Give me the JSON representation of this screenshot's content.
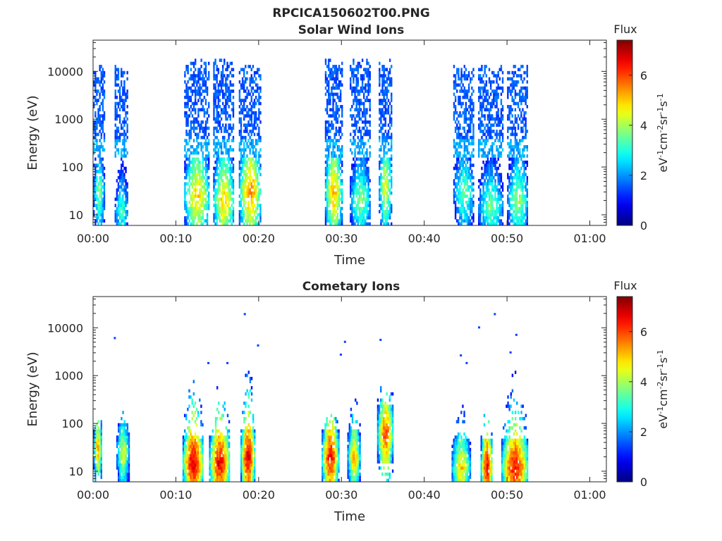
{
  "figure": {
    "suptitle": "RPCICA150602T00.PNG"
  },
  "chart_data": [
    {
      "type": "heatmap",
      "title": "Solar Wind Ions",
      "xlabel": "Time",
      "ylabel": "Energy (eV)",
      "x_ticks": [
        "00:00",
        "00:10",
        "00:20",
        "00:30",
        "00:40",
        "00:50",
        "01:00"
      ],
      "y_ticks": [
        "10",
        "100",
        "1000",
        "10000"
      ],
      "yscale": "log",
      "xlim_minutes": [
        0,
        62
      ],
      "ylim_eV": [
        6,
        45000
      ],
      "colorbar": {
        "title": "Flux",
        "ticks": [
          "0",
          "2",
          "4",
          "6"
        ],
        "range": [
          0,
          7.4
        ],
        "unit": [
          "eV",
          "-1",
          "cm",
          "-2",
          "sr",
          "-1",
          "s",
          "-1"
        ]
      },
      "colormap": "jet",
      "bursts": [
        {
          "start": 0.0,
          "end": 1.3,
          "e_high": 12000,
          "peak_eV": 30,
          "peak_flux": 3.8
        },
        {
          "start": 2.6,
          "end": 4.2,
          "e_high": 12000,
          "peak_eV": 12,
          "peak_flux": 3.2
        },
        {
          "start": 11.0,
          "end": 14.0,
          "e_high": 15000,
          "peak_eV": 25,
          "peak_flux": 5.0
        },
        {
          "start": 14.5,
          "end": 17.0,
          "e_high": 15000,
          "peak_eV": 20,
          "peak_flux": 5.0
        },
        {
          "start": 17.6,
          "end": 20.2,
          "e_high": 12000,
          "peak_eV": 30,
          "peak_flux": 5.5
        },
        {
          "start": 28.0,
          "end": 30.0,
          "e_high": 15000,
          "peak_eV": 30,
          "peak_flux": 5.2
        },
        {
          "start": 31.0,
          "end": 33.5,
          "e_high": 15000,
          "peak_eV": 20,
          "peak_flux": 3.8
        },
        {
          "start": 34.5,
          "end": 36.0,
          "e_high": 15000,
          "peak_eV": 40,
          "peak_flux": 4.6
        },
        {
          "start": 43.5,
          "end": 46.0,
          "e_high": 12000,
          "peak_eV": 30,
          "peak_flux": 3.6
        },
        {
          "start": 46.5,
          "end": 49.5,
          "e_high": 12000,
          "peak_eV": 15,
          "peak_flux": 3.6
        },
        {
          "start": 50.0,
          "end": 52.5,
          "e_high": 12000,
          "peak_eV": 20,
          "peak_flux": 4.0
        }
      ]
    },
    {
      "type": "heatmap",
      "title": "Cometary Ions",
      "xlabel": "Time",
      "ylabel": "Energy (eV)",
      "x_ticks": [
        "00:00",
        "00:10",
        "00:20",
        "00:30",
        "00:40",
        "00:50",
        "01:00"
      ],
      "y_ticks": [
        "10",
        "100",
        "1000",
        "10000"
      ],
      "yscale": "log",
      "xlim_minutes": [
        0,
        62
      ],
      "ylim_eV": [
        6,
        45000
      ],
      "colorbar": {
        "title": "Flux",
        "ticks": [
          "0",
          "2",
          "4",
          "6"
        ],
        "range": [
          0,
          7.4
        ],
        "unit": [
          "eV",
          "-1",
          "cm",
          "-2",
          "sr",
          "-1",
          "s",
          "-1"
        ]
      },
      "colormap": "jet",
      "bursts": [
        {
          "start": 0.0,
          "end": 1.0,
          "e_high": 100,
          "peak_eV": 30,
          "peak_flux": 5.2
        },
        {
          "start": 2.8,
          "end": 4.3,
          "e_high": 140,
          "peak_eV": 25,
          "peak_flux": 4.5
        },
        {
          "start": 10.8,
          "end": 13.3,
          "e_high": 900,
          "peak_eV": 15,
          "peak_flux": 6.8
        },
        {
          "start": 14.0,
          "end": 16.5,
          "e_high": 600,
          "peak_eV": 15,
          "peak_flux": 6.6
        },
        {
          "start": 17.8,
          "end": 19.5,
          "e_high": 1500,
          "peak_eV": 20,
          "peak_flux": 6.8
        },
        {
          "start": 27.6,
          "end": 29.6,
          "e_high": 200,
          "peak_eV": 20,
          "peak_flux": 6.5
        },
        {
          "start": 30.7,
          "end": 32.2,
          "e_high": 300,
          "peak_eV": 20,
          "peak_flux": 5.2
        },
        {
          "start": 34.3,
          "end": 36.2,
          "e_high": 600,
          "peak_eV": 60,
          "peak_flux": 6.0
        },
        {
          "start": 43.3,
          "end": 45.5,
          "e_high": 600,
          "peak_eV": 12,
          "peak_flux": 5.0
        },
        {
          "start": 46.8,
          "end": 48.2,
          "e_high": 400,
          "peak_eV": 12,
          "peak_flux": 6.5
        },
        {
          "start": 49.3,
          "end": 52.5,
          "e_high": 3000,
          "peak_eV": 12,
          "peak_flux": 6.5
        }
      ]
    }
  ]
}
